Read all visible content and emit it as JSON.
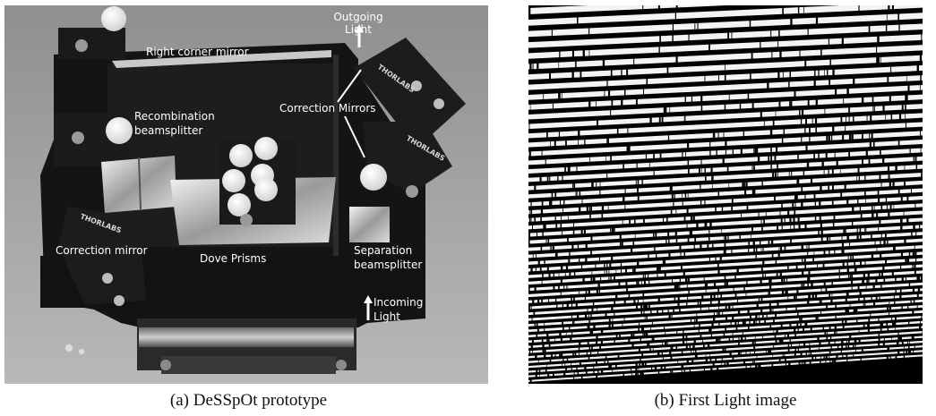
{
  "figure": {
    "panel_a": {
      "caption": "(a) DeSSpOt prototype",
      "labels": {
        "outgoing_light_1": "Outgoing",
        "outgoing_light_2": "Light",
        "right_corner_mirror": "Right corner mirror",
        "correction_mirrors": "Correction Mirrors",
        "recombination_1": "Recombination",
        "recombination_2": "beamsplitter",
        "dove_prisms": "Dove Prisms",
        "correction_mirror": "Correction mirror",
        "separation_1": "Separation",
        "separation_2": "beamsplitter",
        "incoming_light_1": "Incoming",
        "incoming_light_2": "Light"
      },
      "mount_brand": "THORLABS"
    },
    "panel_b": {
      "caption": "(b) First Light image"
    }
  }
}
